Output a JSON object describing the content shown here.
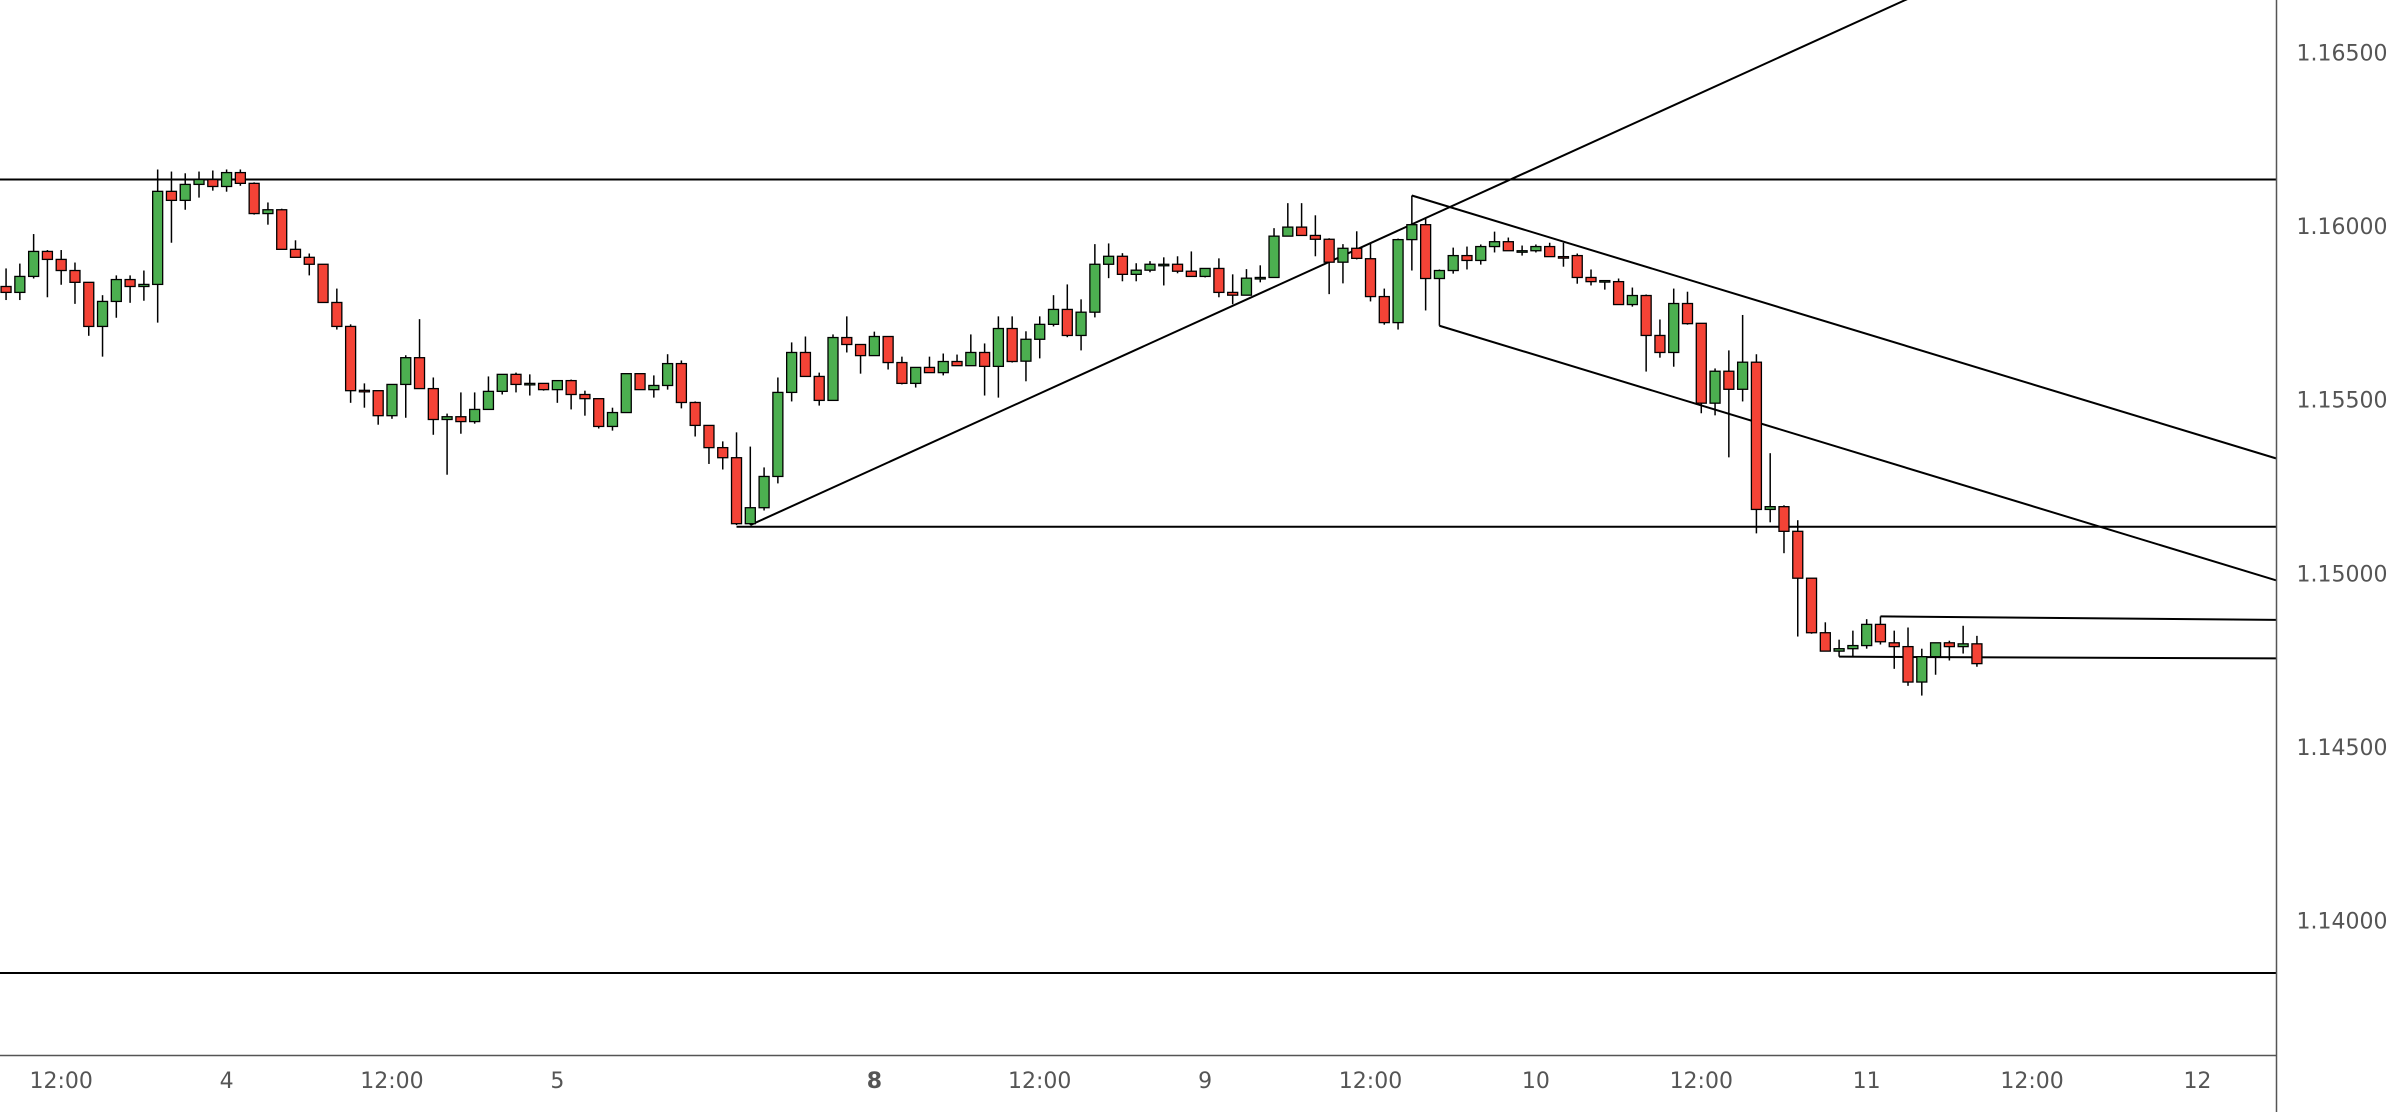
{
  "chart_data": {
    "type": "candlestick",
    "title": "",
    "colors": {
      "up": "#4caf50",
      "down": "#f44336",
      "outline": "#000000",
      "axis_text": "#555555",
      "axis_line": "#555555",
      "drawing": "#000000"
    },
    "ylim": [
      1.13613,
      1.16651
    ],
    "xlim_candle_index": [
      -0.44,
      164.7
    ],
    "y_ticks": [
      "1.16500",
      "1.16000",
      "1.15500",
      "1.15000",
      "1.14500",
      "1.14000"
    ],
    "x_ticks": [
      {
        "label": "12:00",
        "candle": 4,
        "bold": false
      },
      {
        "label": "4",
        "candle": 16,
        "bold": false
      },
      {
        "label": "12:00",
        "candle": 28,
        "bold": false
      },
      {
        "label": "5",
        "candle": 40,
        "bold": false
      },
      {
        "label": "8",
        "candle": 63,
        "bold": true
      },
      {
        "label": "12:00",
        "candle": 75,
        "bold": false
      },
      {
        "label": "9",
        "candle": 87,
        "bold": false
      },
      {
        "label": "12:00",
        "candle": 99,
        "bold": false
      },
      {
        "label": "10",
        "candle": 111,
        "bold": false
      },
      {
        "label": "12:00",
        "candle": 123,
        "bold": false
      },
      {
        "label": "11",
        "candle": 135,
        "bold": false
      },
      {
        "label": "12:00",
        "candle": 147,
        "bold": false
      },
      {
        "label": "12",
        "candle": 159,
        "bold": false
      }
    ],
    "ohlc_fields": [
      "open",
      "high",
      "low",
      "close"
    ],
    "candles": [
      [
        1.15826,
        1.15878,
        1.15787,
        1.15809
      ],
      [
        1.15809,
        1.15892,
        1.15787,
        1.15855
      ],
      [
        1.15855,
        1.15977,
        1.15849,
        1.15927
      ],
      [
        1.15927,
        1.15931,
        1.15795,
        1.15904
      ],
      [
        1.15904,
        1.15931,
        1.15831,
        1.15872
      ],
      [
        1.15872,
        1.15895,
        1.15776,
        1.15838
      ],
      [
        1.15838,
        1.15838,
        1.15684,
        1.15711
      ],
      [
        1.15711,
        1.15801,
        1.15624,
        1.15783
      ],
      [
        1.15783,
        1.15858,
        1.15736,
        1.15846
      ],
      [
        1.15846,
        1.15858,
        1.15779,
        1.15826
      ],
      [
        1.15826,
        1.15872,
        1.15785,
        1.15832
      ],
      [
        1.15832,
        1.16163,
        1.15722,
        1.161
      ],
      [
        1.161,
        1.16157,
        1.15952,
        1.16074
      ],
      [
        1.16074,
        1.16152,
        1.16047,
        1.1612
      ],
      [
        1.1612,
        1.16157,
        1.16082,
        1.16134
      ],
      [
        1.16134,
        1.1616,
        1.16102,
        1.16114
      ],
      [
        1.16114,
        1.16163,
        1.16099,
        1.16154
      ],
      [
        1.16154,
        1.16163,
        1.16116,
        1.16123
      ],
      [
        1.16123,
        1.16126,
        1.16033,
        1.16036
      ],
      [
        1.16036,
        1.16068,
        1.16004,
        1.16047
      ],
      [
        1.16047,
        1.1605,
        1.15933,
        1.15933
      ],
      [
        1.15933,
        1.15959,
        1.1591,
        1.1591
      ],
      [
        1.1591,
        1.15921,
        1.15858,
        1.1589
      ],
      [
        1.1589,
        1.1589,
        1.1578,
        1.1578
      ],
      [
        1.1578,
        1.1582,
        1.15702,
        1.15711
      ],
      [
        1.15711,
        1.15717,
        1.15491,
        1.15526
      ],
      [
        1.15527,
        1.15547,
        1.15477,
        1.15525
      ],
      [
        1.15526,
        1.15526,
        1.15428,
        1.15454
      ],
      [
        1.15454,
        1.15544,
        1.15445,
        1.15544
      ],
      [
        1.15544,
        1.15628,
        1.15448,
        1.15621
      ],
      [
        1.15621,
        1.15732,
        1.15532,
        1.15532
      ],
      [
        1.15532,
        1.15564,
        1.15399,
        1.15443
      ],
      [
        1.15443,
        1.1546,
        1.15284,
        1.15451
      ],
      [
        1.15451,
        1.15521,
        1.15402,
        1.15437
      ],
      [
        1.15437,
        1.15521,
        1.15431,
        1.15472
      ],
      [
        1.15472,
        1.15567,
        1.15472,
        1.15524
      ],
      [
        1.15524,
        1.15573,
        1.15515,
        1.15573
      ],
      [
        1.15573,
        1.15578,
        1.15521,
        1.15544
      ],
      [
        1.15544,
        1.15573,
        1.15512,
        1.15547
      ],
      [
        1.15547,
        1.15547,
        1.15526,
        1.15529
      ],
      [
        1.15529,
        1.15555,
        1.15491,
        1.15555
      ],
      [
        1.15555,
        1.15558,
        1.15472,
        1.15515
      ],
      [
        1.15515,
        1.15526,
        1.15454,
        1.15503
      ],
      [
        1.15503,
        1.15503,
        1.15417,
        1.15423
      ],
      [
        1.15423,
        1.15477,
        1.15411,
        1.15463
      ],
      [
        1.15463,
        1.15575,
        1.15463,
        1.15575
      ],
      [
        1.15575,
        1.15575,
        1.15529,
        1.15529
      ],
      [
        1.15529,
        1.1557,
        1.15506,
        1.15541
      ],
      [
        1.15541,
        1.15631,
        1.15529,
        1.15604
      ],
      [
        1.15604,
        1.15613,
        1.15475,
        1.15492
      ],
      [
        1.15492,
        1.15495,
        1.15394,
        1.15426
      ],
      [
        1.15426,
        1.15426,
        1.15315,
        1.15362
      ],
      [
        1.15362,
        1.1538,
        1.15299,
        1.15333
      ],
      [
        1.15333,
        1.15406,
        1.15139,
        1.15143
      ],
      [
        1.15143,
        1.15365,
        1.15139,
        1.15189
      ],
      [
        1.15189,
        1.15305,
        1.15181,
        1.15279
      ],
      [
        1.15279,
        1.15564,
        1.15259,
        1.15521
      ],
      [
        1.15521,
        1.15665,
        1.15495,
        1.15636
      ],
      [
        1.15636,
        1.15682,
        1.15567,
        1.15567
      ],
      [
        1.15567,
        1.15578,
        1.15483,
        1.15498
      ],
      [
        1.15498,
        1.15688,
        1.15498,
        1.15679
      ],
      [
        1.15679,
        1.1574,
        1.15636,
        1.15659
      ],
      [
        1.15659,
        1.15659,
        1.15575,
        1.15627
      ],
      [
        1.15627,
        1.15696,
        1.15627,
        1.15682
      ],
      [
        1.15682,
        1.15682,
        1.15587,
        1.15607
      ],
      [
        1.15607,
        1.15624,
        1.15544,
        1.15547
      ],
      [
        1.15547,
        1.15593,
        1.15535,
        1.15593
      ],
      [
        1.15593,
        1.15624,
        1.15578,
        1.15578
      ],
      [
        1.15578,
        1.15633,
        1.1557,
        1.1561
      ],
      [
        1.1561,
        1.1563,
        1.15598,
        1.15598
      ],
      [
        1.15598,
        1.15688,
        1.15598,
        1.15636
      ],
      [
        1.15636,
        1.15662,
        1.15512,
        1.15596
      ],
      [
        1.15596,
        1.1574,
        1.15506,
        1.15705
      ],
      [
        1.15705,
        1.1574,
        1.15607,
        1.1561
      ],
      [
        1.15611,
        1.15697,
        1.15553,
        1.15674
      ],
      [
        1.15674,
        1.1574,
        1.15619,
        1.15717
      ],
      [
        1.15717,
        1.15801,
        1.15711,
        1.1576
      ],
      [
        1.1576,
        1.15832,
        1.1568,
        1.15685
      ],
      [
        1.15685,
        1.15789,
        1.15642,
        1.15752
      ],
      [
        1.15752,
        1.15948,
        1.15737,
        1.1589
      ],
      [
        1.1589,
        1.1595,
        1.1585,
        1.15913
      ],
      [
        1.15913,
        1.15922,
        1.15841,
        1.15861
      ],
      [
        1.15861,
        1.15893,
        1.15841,
        1.15873
      ],
      [
        1.15873,
        1.15899,
        1.15867,
        1.1589
      ],
      [
        1.1589,
        1.1591,
        1.15829,
        1.1589
      ],
      [
        1.1589,
        1.15913,
        1.15864,
        1.1587
      ],
      [
        1.1587,
        1.15927,
        1.15855,
        1.15855
      ],
      [
        1.15855,
        1.15878,
        1.15852,
        1.15878
      ],
      [
        1.15878,
        1.15907,
        1.15795,
        1.15809
      ],
      [
        1.15809,
        1.15861,
        1.15775,
        1.15801
      ],
      [
        1.15801,
        1.15876,
        1.15801,
        1.1585
      ],
      [
        1.1585,
        1.15887,
        1.15838,
        1.15852
      ],
      [
        1.15852,
        1.15994,
        1.15852,
        1.15971
      ],
      [
        1.15971,
        1.16066,
        1.15971,
        1.15997
      ],
      [
        1.15997,
        1.16066,
        1.15973,
        1.15973
      ],
      [
        1.15973,
        1.16031,
        1.15913,
        1.15962
      ],
      [
        1.15962,
        1.15965,
        1.15804,
        1.15896
      ],
      [
        1.15896,
        1.15948,
        1.15835,
        1.15936
      ],
      [
        1.15936,
        1.15985,
        1.15904,
        1.15907
      ],
      [
        1.15906,
        1.15952,
        1.15783,
        1.15797
      ],
      [
        1.15797,
        1.1582,
        1.15716,
        1.15722
      ],
      [
        1.15722,
        1.15964,
        1.15702,
        1.15961
      ],
      [
        1.15961,
        1.16088,
        1.15872,
        1.16004
      ],
      [
        1.16004,
        1.16022,
        1.15757,
        1.15849
      ],
      [
        1.15849,
        1.15875,
        1.15713,
        1.15872
      ],
      [
        1.15872,
        1.15938,
        1.15863,
        1.15915
      ],
      [
        1.15915,
        1.15941,
        1.15875,
        1.15901
      ],
      [
        1.15901,
        1.15947,
        1.15889,
        1.15941
      ],
      [
        1.15941,
        1.15984,
        1.15924,
        1.15955
      ],
      [
        1.15955,
        1.15967,
        1.15929,
        1.15929
      ],
      [
        1.15929,
        1.15944,
        1.15915,
        1.15929
      ],
      [
        1.15929,
        1.15947,
        1.15924,
        1.15941
      ],
      [
        1.15941,
        1.15952,
        1.15912,
        1.15912
      ],
      [
        1.15912,
        1.15952,
        1.15883,
        1.15911
      ],
      [
        1.15915,
        1.15921,
        1.15834,
        1.15852
      ],
      [
        1.15852,
        1.15875,
        1.15829,
        1.1584
      ],
      [
        1.15843,
        1.15843,
        1.15817,
        1.15843
      ],
      [
        1.1584,
        1.15849,
        1.15774,
        1.15774
      ],
      [
        1.15774,
        1.15823,
        1.15768,
        1.158
      ],
      [
        1.158,
        1.15803,
        1.15581,
        1.15685
      ],
      [
        1.15685,
        1.15731,
        1.15621,
        1.15636
      ],
      [
        1.15636,
        1.1582,
        1.15595,
        1.15777
      ],
      [
        1.15777,
        1.15811,
        1.15716,
        1.15719
      ],
      [
        1.1572,
        1.1572,
        1.15461,
        1.1549
      ],
      [
        1.1549,
        1.1559,
        1.15455,
        1.15582
      ],
      [
        1.15582,
        1.15642,
        1.15334,
        1.1553
      ],
      [
        1.1553,
        1.15744,
        1.15495,
        1.15608
      ],
      [
        1.15608,
        1.15631,
        1.15115,
        1.15184
      ],
      [
        1.15184,
        1.15346,
        1.15147,
        1.15192
      ],
      [
        1.15192,
        1.15196,
        1.15058,
        1.15121
      ],
      [
        1.15121,
        1.15153,
        1.14818,
        1.14986
      ],
      [
        1.14986,
        1.14986,
        1.14826,
        1.14829
      ],
      [
        1.14829,
        1.14859,
        1.14776,
        1.14776
      ],
      [
        1.14776,
        1.14809,
        1.1476,
        1.14783
      ],
      [
        1.14783,
        1.14835,
        1.1476,
        1.14792
      ],
      [
        1.14792,
        1.14868,
        1.14783,
        1.14853
      ],
      [
        1.14853,
        1.14876,
        1.14795,
        1.14803
      ],
      [
        1.148,
        1.14835,
        1.14725,
        1.14789
      ],
      [
        1.14789,
        1.14844,
        1.14676,
        1.14687
      ],
      [
        1.14687,
        1.14783,
        1.14648,
        1.1476
      ],
      [
        1.1476,
        1.148,
        1.14708,
        1.148
      ],
      [
        1.148,
        1.14806,
        1.14749,
        1.14789
      ],
      [
        1.14789,
        1.14849,
        1.14769,
        1.14797
      ],
      [
        1.14797,
        1.1482,
        1.14731,
        1.1474
      ]
    ],
    "drawings": [
      {
        "kind": "horizontal-line",
        "name": "resistance-line",
        "price": 1.16134
      },
      {
        "kind": "horizontal-line",
        "name": "support-line",
        "price": 1.13849
      },
      {
        "kind": "ray",
        "name": "swing-low-ray",
        "p1": [
          53,
          1.15134
        ],
        "p2": [
          164.7,
          1.15134
        ]
      },
      {
        "kind": "extended-trendline",
        "name": "rising-trendline",
        "p1": [
          54,
          1.15139
        ],
        "p2": [
          102,
          1.16005
        ]
      },
      {
        "kind": "ray",
        "name": "channel-upper-line",
        "p1": [
          102,
          1.16088
        ],
        "p2": [
          164.7,
          1.15331
        ]
      },
      {
        "kind": "ray",
        "name": "channel-lower-line",
        "p1": [
          104,
          1.15713
        ],
        "p2": [
          164.7,
          1.1498
        ]
      },
      {
        "kind": "ray",
        "name": "range-high-ray",
        "p1": [
          136,
          1.14876
        ],
        "p2": [
          164.7,
          1.14866
        ]
      },
      {
        "kind": "ray",
        "name": "range-low-ray",
        "p1": [
          133,
          1.1476
        ],
        "p2": [
          164.7,
          1.14755
        ]
      }
    ]
  }
}
